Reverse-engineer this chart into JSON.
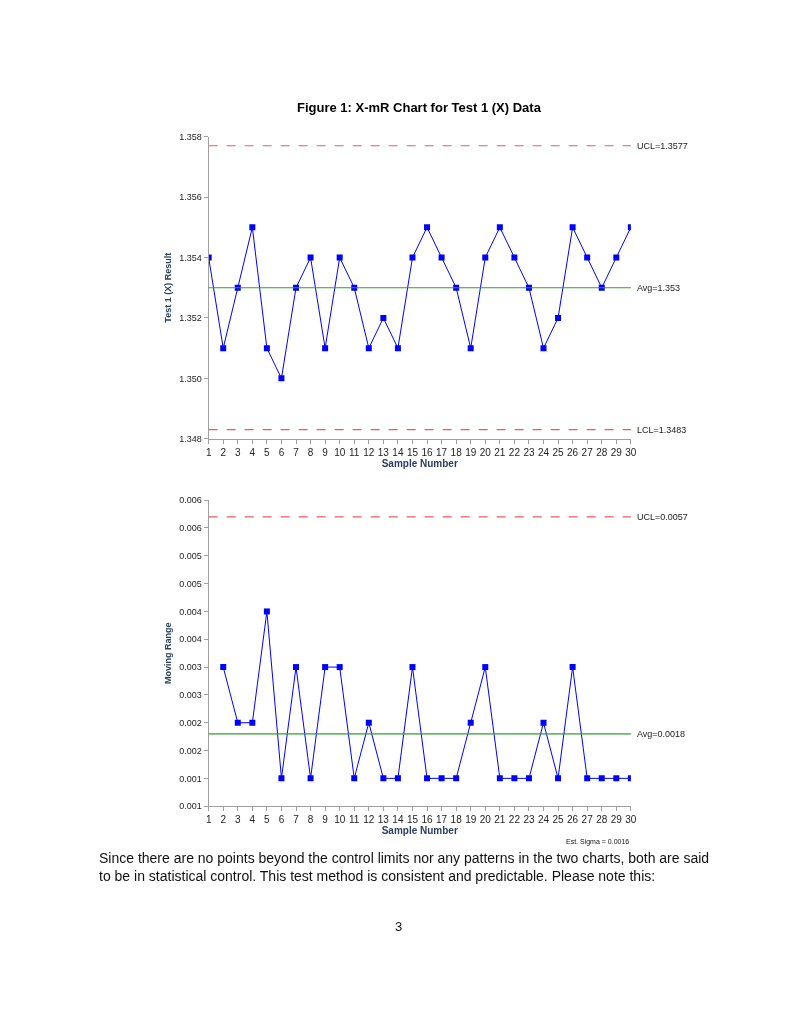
{
  "chart_data": [
    {
      "type": "line",
      "title": "Figure 1: X-mR Chart for Test 1 (X) Data",
      "xlabel": "Sample Number",
      "ylabel": "Test 1 (X) Result",
      "x": [
        1,
        2,
        3,
        4,
        5,
        6,
        7,
        8,
        9,
        10,
        11,
        12,
        13,
        14,
        15,
        16,
        17,
        18,
        19,
        20,
        21,
        22,
        23,
        24,
        25,
        26,
        27,
        28,
        29,
        30
      ],
      "series": [
        {
          "color": "#0000ff",
          "values": [
            1.354,
            1.351,
            1.353,
            1.355,
            1.351,
            1.35,
            1.353,
            1.354,
            1.351,
            1.354,
            1.353,
            1.351,
            1.352,
            1.351,
            1.354,
            1.355,
            1.354,
            1.353,
            1.351,
            1.354,
            1.355,
            1.354,
            1.353,
            1.351,
            1.352,
            1.355,
            1.354,
            1.353,
            1.354,
            1.355
          ]
        }
      ],
      "xlim": [
        1,
        30
      ],
      "xticks": [
        1,
        2,
        3,
        4,
        5,
        6,
        7,
        8,
        9,
        10,
        11,
        12,
        13,
        14,
        15,
        16,
        17,
        18,
        19,
        20,
        21,
        22,
        23,
        24,
        25,
        26,
        27,
        28,
        29,
        30
      ],
      "ylim": [
        1.348,
        1.358
      ],
      "yticks": [
        {
          "value": 1.348,
          "label": "1.348"
        },
        {
          "value": 1.35,
          "label": "1.350"
        },
        {
          "value": 1.352,
          "label": "1.352"
        },
        {
          "value": 1.354,
          "label": "1.354"
        },
        {
          "value": 1.356,
          "label": "1.356"
        },
        {
          "value": 1.358,
          "label": "1.358"
        }
      ],
      "ref_lines": [
        {
          "axis": "y",
          "value": 1.3577,
          "label": "UCL=1.3577",
          "color": "#e06060",
          "line_style": "dashed"
        },
        {
          "axis": "y",
          "value": 1.353,
          "label": "Avg=1.353",
          "color": "#2ca02c",
          "line_style": "solid"
        },
        {
          "axis": "y",
          "value": 1.3483,
          "label": "LCL=1.3483",
          "color": "#e06060",
          "line_style": "dashed"
        }
      ],
      "marker": "square",
      "line_style": "solid"
    },
    {
      "type": "line",
      "xlabel": "Sample Number",
      "ylabel": "Moving Range",
      "x": [
        2,
        3,
        4,
        5,
        6,
        7,
        8,
        9,
        10,
        11,
        12,
        13,
        14,
        15,
        16,
        17,
        18,
        19,
        20,
        21,
        22,
        23,
        24,
        25,
        26,
        27,
        28,
        29,
        30
      ],
      "series": [
        {
          "color": "#0000ff",
          "values": [
            0.003,
            0.002,
            0.002,
            0.004,
            0.001,
            0.003,
            0.001,
            0.003,
            0.003,
            0.001,
            0.002,
            0.001,
            0.001,
            0.003,
            0.001,
            0.001,
            0.001,
            0.002,
            0.003,
            0.001,
            0.001,
            0.001,
            0.002,
            0.001,
            0.003,
            0.001,
            0.001,
            0.001,
            0.001
          ]
        }
      ],
      "xlim": [
        1,
        30
      ],
      "xticks": [
        1,
        2,
        3,
        4,
        5,
        6,
        7,
        8,
        9,
        10,
        11,
        12,
        13,
        14,
        15,
        16,
        17,
        18,
        19,
        20,
        21,
        22,
        23,
        24,
        25,
        26,
        27,
        28,
        29,
        30
      ],
      "ylim": [
        0.0005,
        0.006
      ],
      "yticks": [
        {
          "value": 0.0005,
          "label": "0.001"
        },
        {
          "value": 0.001,
          "label": "0.001"
        },
        {
          "value": 0.0015,
          "label": "0.002"
        },
        {
          "value": 0.002,
          "label": "0.002"
        },
        {
          "value": 0.0025,
          "label": "0.003"
        },
        {
          "value": 0.003,
          "label": "0.003"
        },
        {
          "value": 0.0035,
          "label": "0.004"
        },
        {
          "value": 0.004,
          "label": "0.004"
        },
        {
          "value": 0.0045,
          "label": "0.005"
        },
        {
          "value": 0.005,
          "label": "0.005"
        },
        {
          "value": 0.0055,
          "label": "0.006"
        },
        {
          "value": 0.006,
          "label": "0.006"
        }
      ],
      "ref_lines": [
        {
          "axis": "y",
          "value": 0.0057,
          "label": "UCL=0.0057",
          "color": "#e06060",
          "line_style": "dashed"
        },
        {
          "axis": "y",
          "value": 0.0018,
          "label": "Avg=0.0018",
          "color": "#2ca02c",
          "line_style": "solid"
        }
      ],
      "annotations": [
        "Est. Sigma = 0.0016",
        "Since there are no points beyond the control limits nor any patterns in the two charts, both are said to be in statistical control. This test method is consistent and predictable. Please note this:",
        "3"
      ],
      "marker": "square",
      "line_style": "solid"
    }
  ]
}
